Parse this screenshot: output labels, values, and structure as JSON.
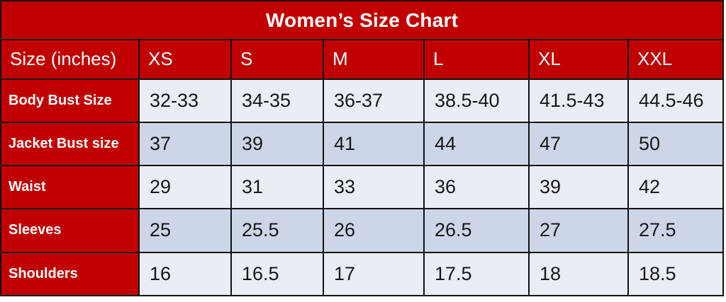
{
  "title": "Women’s Size Chart",
  "colors": {
    "header_red": "#c00000",
    "row_light": "#e9edf4",
    "row_dark": "#ccd6e8",
    "border": "#111111",
    "header_text": "#ffffff",
    "cell_text": "#181818"
  },
  "table": {
    "header": [
      "Size (inches)",
      "XS",
      "S",
      "M",
      "L",
      "XL",
      "XXL"
    ],
    "rows": [
      {
        "label": "Body Bust Size",
        "values": [
          "32-33",
          "34-35",
          "36-37",
          "38.5-40",
          "41.5-43",
          "44.5-46"
        ]
      },
      {
        "label": "Jacket Bust size",
        "values": [
          "37",
          "39",
          "41",
          "44",
          "47",
          "50"
        ]
      },
      {
        "label": "Waist",
        "values": [
          "29",
          "31",
          "33",
          "36",
          "39",
          "42"
        ]
      },
      {
        "label": "Sleeves",
        "values": [
          "25",
          "25.5",
          "26",
          "26.5",
          "27",
          "27.5"
        ]
      },
      {
        "label": "Shoulders",
        "values": [
          "16",
          "16.5",
          "17",
          "17.5",
          "18",
          "18.5"
        ]
      }
    ]
  },
  "chart_data": {
    "type": "table",
    "title": "Women’s Size Chart",
    "unit": "inches",
    "columns": [
      "Size (inches)",
      "XS",
      "S",
      "M",
      "L",
      "XL",
      "XXL"
    ],
    "rows": [
      [
        "Body Bust Size",
        "32-33",
        "34-35",
        "36-37",
        "38.5-40",
        "41.5-43",
        "44.5-46"
      ],
      [
        "Jacket Bust size",
        "37",
        "39",
        "41",
        "44",
        "47",
        "50"
      ],
      [
        "Waist",
        "29",
        "31",
        "33",
        "36",
        "39",
        "42"
      ],
      [
        "Sleeves",
        "25",
        "25.5",
        "26",
        "26.5",
        "27",
        "27.5"
      ],
      [
        "Shoulders",
        "16",
        "16.5",
        "17",
        "17.5",
        "18",
        "18.5"
      ]
    ]
  }
}
